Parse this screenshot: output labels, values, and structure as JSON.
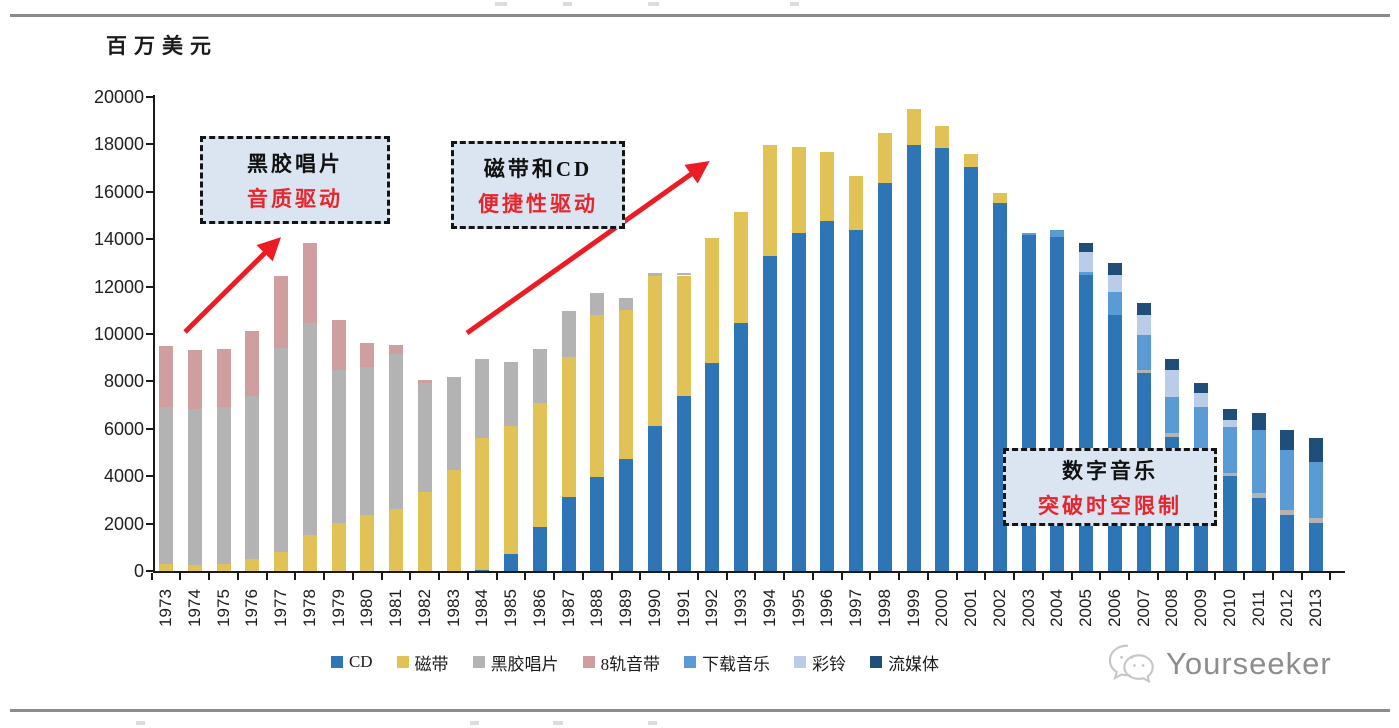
{
  "page": {
    "watermark_text": "Yourseeker"
  },
  "chart_data": {
    "type": "bar",
    "stacked": true,
    "title": "",
    "xlabel": "",
    "ylabel": "百万美元",
    "ylim": [
      0,
      20000
    ],
    "ytick_step": 2000,
    "grid": false,
    "legend_position": "bottom",
    "categories": [
      "1973",
      "1974",
      "1975",
      "1976",
      "1977",
      "1978",
      "1979",
      "1980",
      "1981",
      "1982",
      "1983",
      "1984",
      "1985",
      "1986",
      "1987",
      "1988",
      "1989",
      "1990",
      "1991",
      "1992",
      "1993",
      "1994",
      "1995",
      "1996",
      "1997",
      "1998",
      "1999",
      "2000",
      "2001",
      "2002",
      "2003",
      "2004",
      "2005",
      "2006",
      "2007",
      "2008",
      "2009",
      "2010",
      "2011",
      "2012",
      "2013"
    ],
    "series": [
      {
        "name": "CD",
        "color": "#2e75b6",
        "values": [
          0,
          0,
          0,
          0,
          0,
          0,
          0,
          0,
          0,
          0,
          0,
          60,
          720,
          1860,
          3120,
          3970,
          4730,
          6120,
          7390,
          8780,
          10460,
          13290,
          14270,
          14780,
          14390,
          16370,
          17980,
          17850,
          17050,
          15530,
          14170,
          14100,
          12490,
          10800,
          8350,
          5650,
          4200,
          4000,
          3080,
          2360,
          2030
        ]
      },
      {
        "name": "磁带",
        "color": "#e0c257",
        "values": [
          300,
          250,
          300,
          500,
          800,
          1520,
          2030,
          2360,
          2620,
          3340,
          4260,
          5550,
          5400,
          5230,
          5910,
          6830,
          6280,
          6330,
          5080,
          5280,
          4700,
          4700,
          3620,
          2900,
          2280,
          2110,
          1520,
          930,
          550,
          420,
          0,
          0,
          0,
          0,
          0,
          0,
          0,
          0,
          0,
          0,
          0
        ]
      },
      {
        "name": "黑胶唱片",
        "color": "#b3b3b3",
        "values": [
          6620,
          6590,
          6620,
          6890,
          8610,
          8940,
          6450,
          6250,
          6550,
          4580,
          3930,
          3340,
          2700,
          2280,
          1940,
          950,
          510,
          120,
          100,
          0,
          0,
          0,
          0,
          0,
          0,
          0,
          0,
          0,
          0,
          0,
          0,
          0,
          0,
          0,
          130,
          170,
          150,
          150,
          210,
          210,
          210
        ]
      },
      {
        "name": "8轨音带",
        "color": "#cf9f9f",
        "values": [
          2580,
          2490,
          2450,
          2740,
          3040,
          3380,
          2110,
          1010,
          370,
          140,
          0,
          0,
          0,
          0,
          0,
          0,
          0,
          0,
          0,
          0,
          0,
          0,
          0,
          0,
          0,
          0,
          0,
          0,
          0,
          0,
          0,
          0,
          0,
          0,
          0,
          0,
          0,
          0,
          0,
          0,
          0
        ]
      },
      {
        "name": "下载音乐",
        "color": "#5b9bd5",
        "values": [
          0,
          0,
          0,
          0,
          0,
          0,
          0,
          0,
          0,
          0,
          0,
          0,
          0,
          0,
          0,
          0,
          0,
          0,
          0,
          0,
          0,
          0,
          0,
          0,
          0,
          0,
          0,
          0,
          0,
          0,
          100,
          290,
          130,
          970,
          1480,
          1520,
          2570,
          1920,
          2660,
          2540,
          2360
        ]
      },
      {
        "name": "彩铃",
        "color": "#b9cde8",
        "values": [
          0,
          0,
          0,
          0,
          0,
          0,
          0,
          0,
          0,
          0,
          0,
          0,
          0,
          0,
          0,
          0,
          0,
          0,
          0,
          0,
          0,
          0,
          0,
          0,
          0,
          0,
          0,
          0,
          0,
          0,
          0,
          0,
          840,
          720,
          840,
          1140,
          590,
          300,
          0,
          0,
          0
        ]
      },
      {
        "name": "流媒体",
        "color": "#1f4e79",
        "values": [
          0,
          0,
          0,
          0,
          0,
          0,
          0,
          0,
          0,
          0,
          0,
          0,
          0,
          0,
          0,
          0,
          0,
          0,
          0,
          0,
          0,
          0,
          0,
          0,
          0,
          0,
          0,
          0,
          0,
          0,
          0,
          0,
          380,
          510,
          510,
          460,
          420,
          470,
          720,
          840,
          1010
        ]
      }
    ],
    "annotations": [
      {
        "line1": "黑胶唱片",
        "line2": "音质驱动"
      },
      {
        "line1": "磁带和CD",
        "line2": "便捷性驱动"
      },
      {
        "line1": "数字音乐",
        "line2": "突破时空限制"
      }
    ]
  }
}
